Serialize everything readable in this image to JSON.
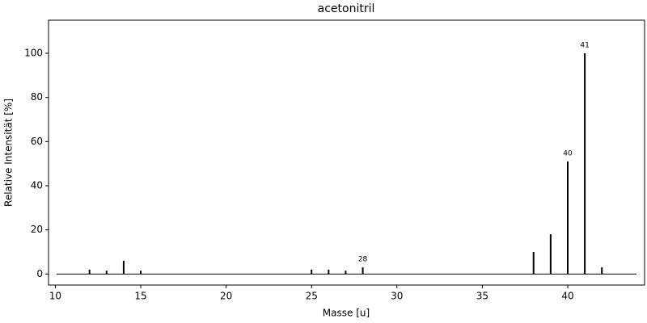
{
  "chart_data": {
    "type": "stem",
    "title": "acetonitril",
    "x_label": "Masse [u]",
    "y_label": "Relative Intensität [%]",
    "x": [
      12,
      13,
      14,
      15,
      25,
      26,
      27,
      28,
      38,
      39,
      40,
      41,
      42
    ],
    "values": [
      2,
      1.5,
      6,
      1.5,
      2,
      2,
      1.5,
      3,
      10,
      18,
      51,
      100,
      3
    ],
    "color": "#000000",
    "annotations": [
      28,
      40,
      41
    ],
    "xlim": [
      9.6,
      44.5
    ],
    "xticks": [
      10,
      15,
      20,
      25,
      30,
      35,
      40
    ],
    "ylim": [
      -5,
      115
    ],
    "yticks": [
      0,
      20,
      40,
      60,
      80,
      100
    ],
    "grid": false
  }
}
